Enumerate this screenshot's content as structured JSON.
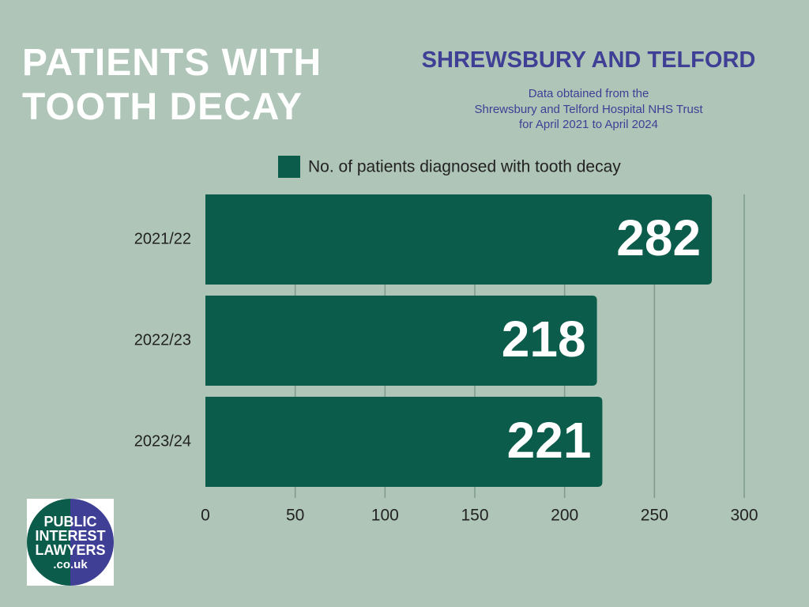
{
  "chart_data": {
    "type": "bar",
    "orientation": "horizontal",
    "title": "PATIENTS WITH TOOTH DECAY",
    "subtitle": "SHREWSBURY AND TELFORD",
    "note": [
      "Data obtained from the",
      "Shrewsbury and Telford Hospital NHS Trust",
      "for April 2021 to April 2024"
    ],
    "categories": [
      "2021/22",
      "2022/23",
      "2023/24"
    ],
    "series": [
      {
        "name": "No. of patients diagnosed with tooth decay",
        "color": "#0b5c4a",
        "values": [
          282,
          218,
          221
        ]
      }
    ],
    "xlim": [
      0,
      300
    ],
    "xticks": [
      0,
      50,
      100,
      150,
      200,
      250,
      300
    ],
    "grid": true,
    "legend": "top"
  },
  "logo": {
    "lines": [
      "PUBLIC",
      "INTEREST",
      "LAWYERS",
      ".co.uk"
    ]
  }
}
